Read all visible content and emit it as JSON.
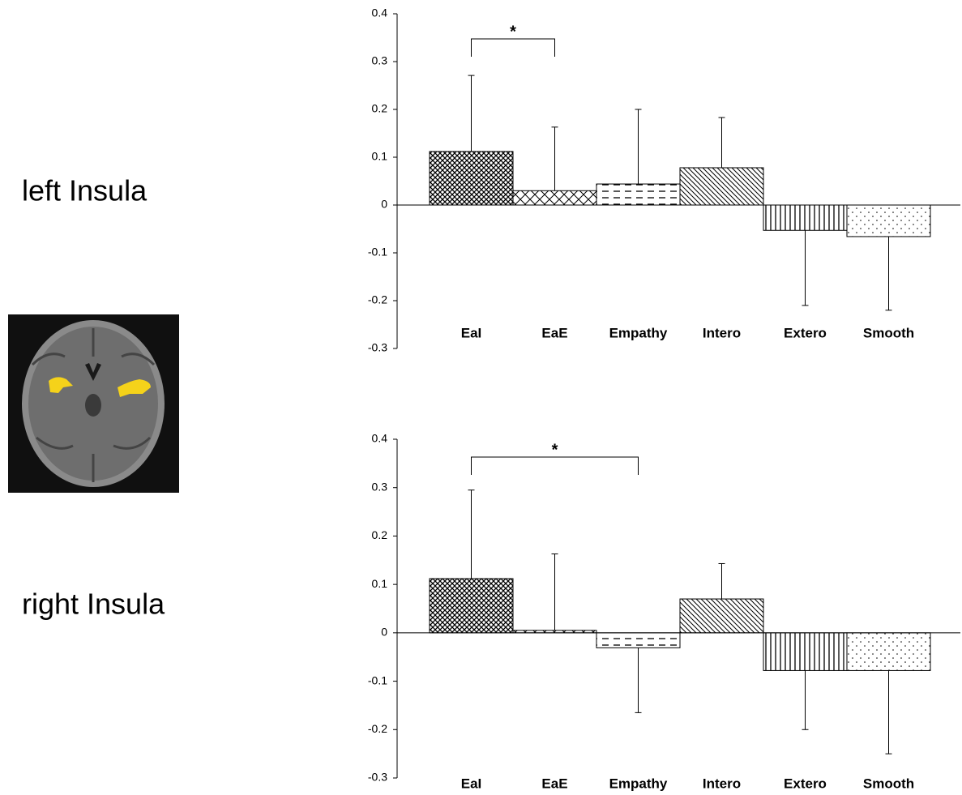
{
  "chart_data": [
    {
      "type": "bar",
      "title": "left Insula",
      "categories": [
        "EaI",
        "EaE",
        "Empathy",
        "Intero",
        "Extero",
        "Smooth"
      ],
      "values": [
        0.112,
        0.03,
        0.044,
        0.078,
        -0.053,
        -0.066
      ],
      "errors": [
        0.159,
        0.133,
        0.156,
        0.105,
        0.157,
        0.154
      ],
      "annotation": "*",
      "color": "#000000",
      "ylim": [
        -0.3,
        0.4
      ],
      "yticks": [
        0.4,
        0.3,
        0.2,
        0.1,
        0,
        -0.1,
        -0.2,
        -0.3
      ]
    },
    {
      "type": "bar",
      "title": "right Insula",
      "categories": [
        "EaI",
        "EaE",
        "Empathy",
        "Intero",
        "Extero",
        "Smooth"
      ],
      "values": [
        0.112,
        0.005,
        -0.031,
        0.07,
        -0.078,
        -0.078
      ],
      "errors": [
        0.183,
        0.158,
        0.134,
        0.073,
        0.122,
        0.172
      ],
      "annotation": "*",
      "color": "#000000",
      "ylim": [
        -0.3,
        0.4
      ],
      "yticks": [
        0.4,
        0.3,
        0.2,
        0.1,
        0,
        -0.1,
        -0.2,
        -0.3
      ]
    }
  ]
}
